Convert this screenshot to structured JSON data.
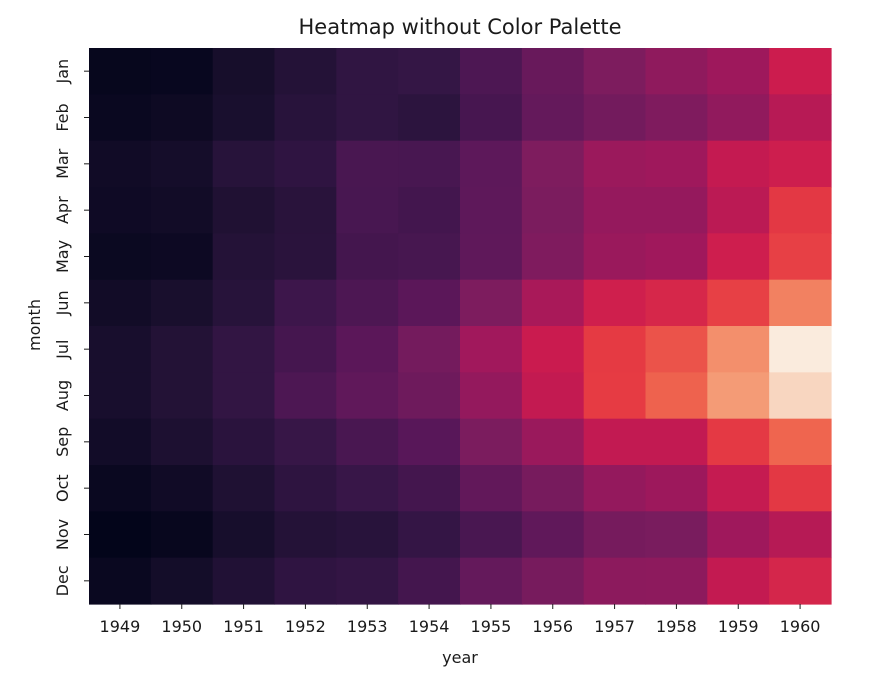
{
  "chart_data": {
    "type": "heatmap",
    "title": "Heatmap without Color Palette",
    "xlabel": "year",
    "ylabel": "month",
    "x": [
      "1949",
      "1950",
      "1951",
      "1952",
      "1953",
      "1954",
      "1955",
      "1956",
      "1957",
      "1958",
      "1959",
      "1960"
    ],
    "y": [
      "Jan",
      "Feb",
      "Mar",
      "Apr",
      "May",
      "Jun",
      "Jul",
      "Aug",
      "Sep",
      "Oct",
      "Nov",
      "Dec"
    ],
    "values": [
      [
        112,
        115,
        145,
        171,
        196,
        204,
        242,
        284,
        315,
        340,
        360,
        417
      ],
      [
        118,
        126,
        150,
        180,
        196,
        188,
        233,
        277,
        301,
        318,
        342,
        391
      ],
      [
        132,
        141,
        178,
        193,
        236,
        235,
        267,
        317,
        356,
        362,
        406,
        419
      ],
      [
        129,
        135,
        163,
        181,
        235,
        227,
        269,
        313,
        348,
        348,
        396,
        461
      ],
      [
        121,
        125,
        172,
        183,
        229,
        234,
        270,
        318,
        355,
        363,
        420,
        472
      ],
      [
        135,
        149,
        178,
        218,
        243,
        264,
        315,
        374,
        422,
        435,
        472,
        535
      ],
      [
        148,
        170,
        199,
        230,
        264,
        302,
        364,
        413,
        465,
        491,
        548,
        622
      ],
      [
        148,
        170,
        199,
        242,
        272,
        293,
        347,
        405,
        467,
        505,
        559,
        606
      ],
      [
        136,
        158,
        184,
        209,
        237,
        259,
        312,
        355,
        404,
        404,
        463,
        508
      ],
      [
        119,
        133,
        162,
        191,
        211,
        229,
        274,
        306,
        347,
        359,
        407,
        461
      ],
      [
        104,
        114,
        146,
        172,
        180,
        203,
        237,
        271,
        305,
        310,
        362,
        390
      ],
      [
        118,
        140,
        166,
        194,
        201,
        229,
        278,
        306,
        336,
        337,
        405,
        432
      ]
    ],
    "colorscale": "rocket",
    "colorbar": false,
    "grid": false
  }
}
